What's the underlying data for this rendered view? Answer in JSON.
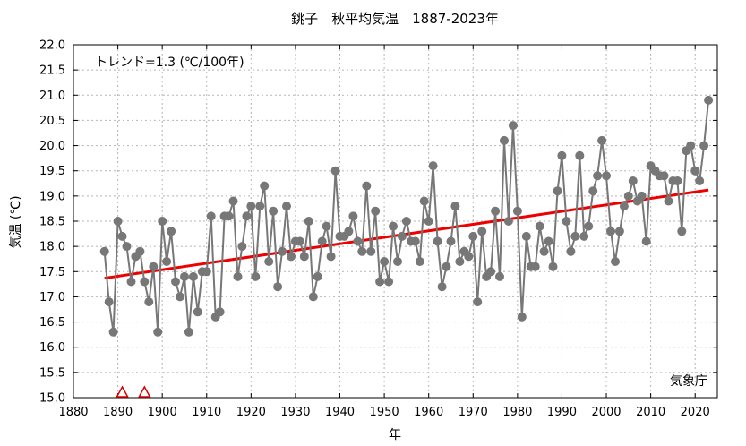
{
  "chart_data": {
    "type": "line",
    "title": "銚子　秋平均気温　1887-2023年",
    "xlabel": "年",
    "ylabel": "気温 (℃)",
    "xlim": [
      1880,
      2025
    ],
    "ylim": [
      15.0,
      22.0
    ],
    "xticks": [
      1880,
      1890,
      1900,
      1910,
      1920,
      1930,
      1940,
      1950,
      1960,
      1970,
      1980,
      1990,
      2000,
      2010,
      2020
    ],
    "yticks": [
      15.0,
      15.5,
      16.0,
      16.5,
      17.0,
      17.5,
      18.0,
      18.5,
      19.0,
      19.5,
      20.0,
      20.5,
      21.0,
      21.5,
      22.0
    ],
    "grid": true,
    "trend_label": "トレンド=1.3 (℃/100年)",
    "source_label": "気象庁",
    "colors": {
      "series": "#777777",
      "trend": "#ee0000",
      "marker": "#dd0000"
    },
    "series": [
      {
        "x": [
          1887,
          1888,
          1889,
          1890,
          1891,
          1892,
          1893,
          1894,
          1895,
          1896,
          1897,
          1898,
          1899,
          1900,
          1901,
          1902,
          1903,
          1904,
          1905,
          1906,
          1907,
          1908,
          1909,
          1910,
          1911,
          1912,
          1913,
          1914,
          1915,
          1916,
          1917,
          1918,
          1919,
          1920,
          1921,
          1922,
          1923,
          1924,
          1925,
          1926,
          1927,
          1928,
          1929,
          1930,
          1931,
          1932,
          1933,
          1934,
          1935,
          1936,
          1937,
          1938,
          1939,
          1940,
          1941,
          1942,
          1943,
          1944,
          1945,
          1946,
          1947,
          1948,
          1949,
          1950,
          1951,
          1952,
          1953,
          1954,
          1955,
          1956,
          1957,
          1958,
          1959,
          1960,
          1961,
          1962,
          1963,
          1964,
          1965,
          1966,
          1967,
          1968,
          1969,
          1970,
          1971,
          1972,
          1973,
          1974,
          1975,
          1976,
          1977,
          1978,
          1979,
          1980,
          1981,
          1982,
          1983,
          1984,
          1985,
          1986,
          1987,
          1988,
          1989,
          1990,
          1991,
          1992,
          1993,
          1994,
          1995,
          1996,
          1997,
          1998,
          1999,
          2000,
          2001,
          2002,
          2003,
          2004,
          2005,
          2006,
          2007,
          2008,
          2009,
          2010,
          2011,
          2012,
          2013,
          2014,
          2015,
          2016,
          2017,
          2018,
          2019,
          2020,
          2021,
          2022,
          2023
        ],
        "values": [
          17.9,
          16.9,
          16.3,
          18.5,
          18.2,
          18.0,
          17.3,
          17.8,
          17.9,
          17.3,
          16.9,
          17.6,
          16.3,
          18.5,
          17.7,
          18.3,
          17.3,
          17.0,
          17.4,
          16.3,
          17.4,
          16.7,
          17.5,
          17.5,
          18.6,
          16.6,
          16.7,
          18.6,
          18.6,
          18.9,
          17.4,
          18.0,
          18.6,
          18.8,
          17.4,
          18.8,
          19.2,
          17.7,
          18.7,
          17.2,
          17.9,
          18.8,
          17.8,
          18.1,
          18.1,
          17.8,
          18.5,
          17.0,
          17.4,
          18.1,
          18.4,
          17.8,
          19.5,
          18.2,
          18.2,
          18.3,
          18.6,
          18.1,
          17.9,
          19.2,
          17.9,
          18.7,
          17.3,
          17.7,
          17.3,
          18.4,
          17.7,
          18.2,
          18.5,
          18.1,
          18.1,
          17.7,
          18.9,
          18.5,
          19.6,
          18.1,
          17.2,
          17.6,
          18.1,
          18.8,
          17.7,
          17.9,
          17.8,
          18.2,
          16.9,
          18.3,
          17.4,
          17.5,
          18.7,
          17.4,
          20.1,
          18.5,
          20.4,
          18.7,
          16.6,
          18.2,
          17.6,
          17.6,
          18.4,
          17.9,
          18.1,
          17.6,
          19.1,
          19.8,
          18.5,
          17.9,
          18.2,
          19.8,
          18.2,
          18.4,
          19.1,
          19.4,
          20.1,
          19.4,
          18.3,
          17.7,
          18.3,
          18.8,
          19.0,
          19.3,
          18.9,
          19.0,
          18.1,
          19.6,
          19.5,
          19.4,
          19.4,
          18.9,
          19.3,
          19.3,
          18.3,
          19.9,
          20.0,
          19.5,
          19.3,
          20.0,
          20.9
        ]
      }
    ],
    "trend": {
      "x": [
        1887,
        2023
      ],
      "values": [
        17.37,
        19.12
      ]
    },
    "markers": {
      "shape": "triangle",
      "x": [
        1891,
        1896
      ]
    }
  }
}
